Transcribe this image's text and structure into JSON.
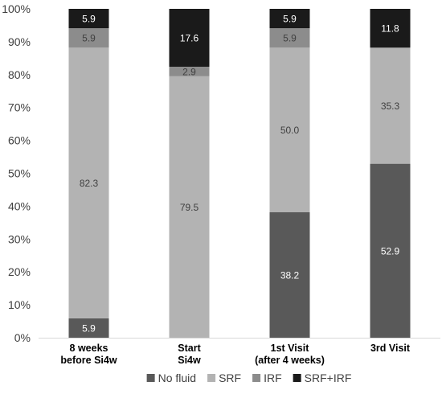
{
  "chart_data": {
    "type": "bar",
    "stacked": true,
    "percent": true,
    "categories": [
      [
        "8 weeks",
        "before Si4w"
      ],
      [
        "Start",
        "Si4w"
      ],
      [
        "1st Visit",
        "(after 4 weeks)"
      ],
      [
        "3rd Visit"
      ]
    ],
    "series": [
      {
        "name": "No fluid",
        "color": "#595959",
        "label_color": "#ffffff",
        "values": [
          5.9,
          0,
          38.2,
          52.9
        ]
      },
      {
        "name": "SRF",
        "color": "#b3b3b3",
        "label_color": "#404040",
        "values": [
          82.3,
          79.5,
          50.0,
          35.3
        ]
      },
      {
        "name": "IRF",
        "color": "#8c8c8c",
        "label_color": "#404040",
        "values": [
          5.9,
          2.9,
          5.9,
          0
        ]
      },
      {
        "name": "SRF+IRF",
        "color": "#1a1a1a",
        "label_color": "#ffffff",
        "values": [
          5.9,
          17.6,
          5.9,
          11.8
        ]
      }
    ],
    "y_ticks": [
      "0%",
      "10%",
      "20%",
      "30%",
      "40%",
      "50%",
      "60%",
      "70%",
      "80%",
      "90%",
      "100%"
    ],
    "ylim": [
      0,
      100
    ],
    "grid": false,
    "legend_position": "bottom",
    "title": "",
    "xlabel": "",
    "ylabel": ""
  }
}
